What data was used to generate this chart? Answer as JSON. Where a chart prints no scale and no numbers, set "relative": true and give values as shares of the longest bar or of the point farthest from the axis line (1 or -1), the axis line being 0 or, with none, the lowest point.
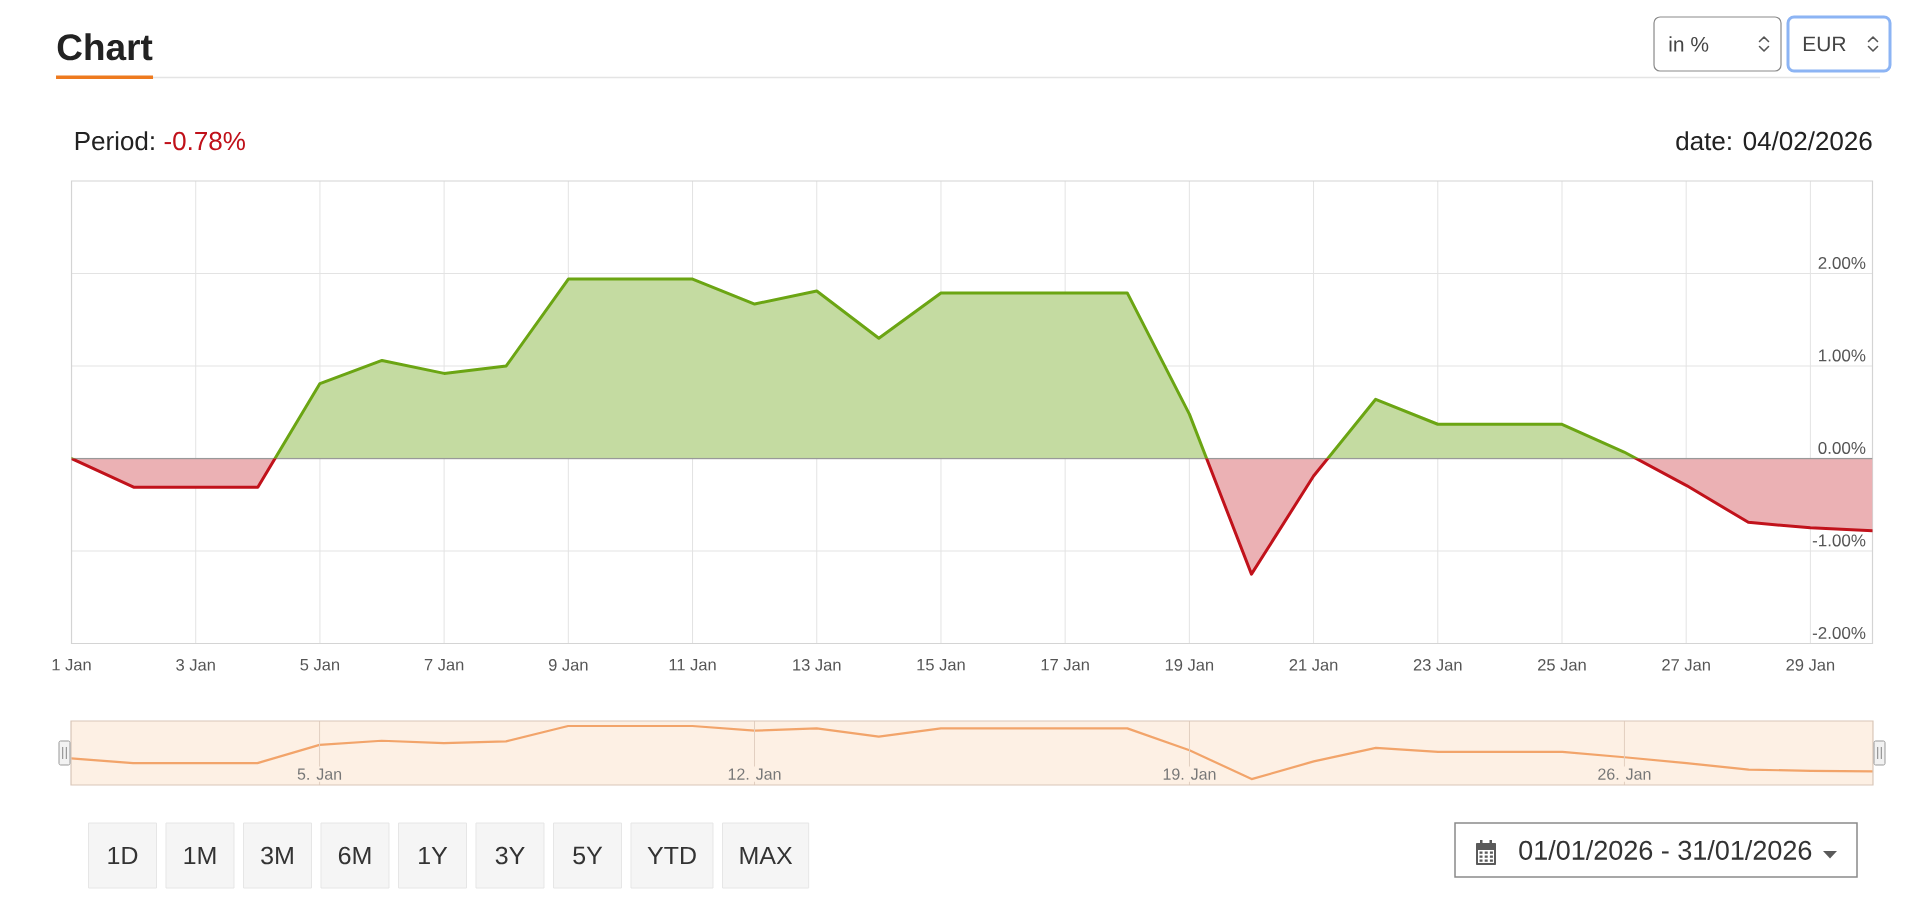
{
  "chart_data": [
    {
      "type": "area",
      "title": "Chart",
      "annotations": [
        "Period:",
        "-0.78%",
        "date: 04/02/2026",
        "in %",
        "EUR",
        "1D",
        "1M",
        "3M",
        "6M",
        "1Y",
        "3Y",
        "5Y",
        "YTD",
        "MAX",
        "01/01/2026 - 31/01/2026"
      ],
      "x": [
        "2026-01-01",
        "2026-01-02",
        "2026-01-03",
        "2026-01-04",
        "2026-01-05",
        "2026-01-06",
        "2026-01-07",
        "2026-01-08",
        "2026-01-09",
        "2026-01-10",
        "2026-01-11",
        "2026-01-12",
        "2026-01-13",
        "2026-01-14",
        "2026-01-15",
        "2026-01-16",
        "2026-01-17",
        "2026-01-18",
        "2026-01-19",
        "2026-01-20",
        "2026-01-21",
        "2026-01-22",
        "2026-01-23",
        "2026-01-24",
        "2026-01-25",
        "2026-01-26",
        "2026-01-27",
        "2026-01-28",
        "2026-01-29",
        "2026-01-30"
      ],
      "values": [
        0,
        -0.31,
        -0.31,
        -0.31,
        0.81,
        1.06,
        0.92,
        1.0,
        1.94,
        1.94,
        1.94,
        1.67,
        1.81,
        1.3,
        1.79,
        1.79,
        1.79,
        1.79,
        0.48,
        -1.25,
        -0.19,
        0.64,
        0.37,
        0.37,
        0.37,
        0.07,
        -0.29,
        -0.69,
        -0.75,
        -0.78
      ],
      "color": "#6ba513",
      "colors": [
        "#6ba513",
        "#c1121b",
        "#c1121b",
        "#c1121b",
        "#6ba513",
        "#6ba513",
        "#6ba513",
        "#6ba513",
        "#6ba513",
        "#6ba513",
        "#6ba513",
        "#6ba513",
        "#6ba513",
        "#6ba513",
        "#6ba513",
        "#6ba513",
        "#6ba513",
        "#6ba513",
        "#6ba513",
        "#c1121b",
        "#c1121b",
        "#6ba513",
        "#6ba513",
        "#6ba513",
        "#6ba513",
        "#6ba513",
        "#c1121b",
        "#c1121b",
        "#c1121b",
        "#c1121b"
      ],
      "xlim": [
        "2026-01-01",
        "2026-01-30"
      ],
      "xticks": [
        {
          "value": "2026-01-01",
          "label": "1 Jan"
        },
        {
          "value": "2026-01-03",
          "label": "3 Jan"
        },
        {
          "value": "2026-01-05",
          "label": "5 Jan"
        },
        {
          "value": "2026-01-07",
          "label": "7 Jan"
        },
        {
          "value": "2026-01-09",
          "label": "9 Jan"
        },
        {
          "value": "2026-01-11",
          "label": "11 Jan"
        },
        {
          "value": "2026-01-13",
          "label": "13 Jan"
        },
        {
          "value": "2026-01-15",
          "label": "15 Jan"
        },
        {
          "value": "2026-01-17",
          "label": "17 Jan"
        },
        {
          "value": "2026-01-19",
          "label": "19 Jan"
        },
        {
          "value": "2026-01-21",
          "label": "21 Jan"
        },
        {
          "value": "2026-01-23",
          "label": "23 Jan"
        },
        {
          "value": "2026-01-25",
          "label": "25 Jan"
        },
        {
          "value": "2026-01-27",
          "label": "27 Jan"
        },
        {
          "value": "2026-01-29",
          "label": "29 Jan"
        }
      ],
      "ylim": [
        -2,
        3
      ],
      "yticks": [
        {
          "value": -2,
          "label": "-2.00%"
        },
        {
          "value": -1,
          "label": "-1.00%"
        },
        {
          "value": 0,
          "label": "0.00%"
        },
        {
          "value": 1,
          "label": "1.00%"
        },
        {
          "value": 2,
          "label": "2.00%"
        }
      ],
      "grid": true,
      "ref_lines": [
        {
          "axis": "y",
          "value": 0,
          "color": "#999999"
        }
      ]
    },
    {
      "type": "line",
      "relative": true,
      "x": [
        "2026-01-01",
        "2026-01-02",
        "2026-01-03",
        "2026-01-04",
        "2026-01-05",
        "2026-01-06",
        "2026-01-07",
        "2026-01-08",
        "2026-01-09",
        "2026-01-10",
        "2026-01-11",
        "2026-01-12",
        "2026-01-13",
        "2026-01-14",
        "2026-01-15",
        "2026-01-16",
        "2026-01-17",
        "2026-01-18",
        "2026-01-19",
        "2026-01-20",
        "2026-01-21",
        "2026-01-22",
        "2026-01-23",
        "2026-01-24",
        "2026-01-25",
        "2026-01-26",
        "2026-01-27",
        "2026-01-28",
        "2026-01-29",
        "2026-01-30"
      ],
      "values": [
        0.45,
        0.37,
        0.37,
        0.37,
        0.68,
        0.75,
        0.71,
        0.74,
        1,
        1,
        1,
        0.92,
        0.96,
        0.82,
        0.96,
        0.96,
        0.96,
        0.96,
        0.59,
        0.1,
        0.4,
        0.63,
        0.56,
        0.56,
        0.56,
        0.47,
        0.37,
        0.26,
        0.24,
        0.23
      ],
      "color": "#f2a46a",
      "xlim": [
        "2026-01-01",
        "2026-01-30"
      ],
      "xticks": [
        {
          "value": "2026-01-05",
          "label": "5. Jan"
        },
        {
          "value": "2026-01-12",
          "label": "12. Jan"
        },
        {
          "value": "2026-01-19",
          "label": "19. Jan"
        },
        {
          "value": "2026-01-26",
          "label": "26. Jan"
        }
      ],
      "grid": "x",
      "bands": [
        {
          "axis": "x",
          "from": "2026-01-01",
          "to": "2026-01-30",
          "color": "#fdf0e4"
        }
      ]
    }
  ]
}
